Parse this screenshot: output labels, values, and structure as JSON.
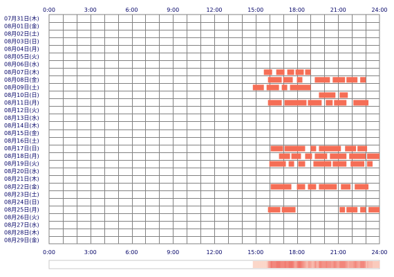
{
  "chart_data": {
    "type": "heatmap",
    "title": "",
    "xlabel": "",
    "ylabel": "",
    "x_range_hours": [
      0,
      24
    ],
    "x_ticks": [
      "0:00",
      "3:00",
      "6:00",
      "9:00",
      "12:00",
      "15:00",
      "18:00",
      "21:00",
      "24:00"
    ],
    "grid": true,
    "colors": {
      "bar": "#f56e56",
      "bar_light": "#f9a87a",
      "grid": "#808080",
      "label": "#000066",
      "density_base": "#fdeee6"
    },
    "rows": [
      {
        "date": "07月31日(木)",
        "intervals": []
      },
      {
        "date": "08月01日(金)",
        "intervals": []
      },
      {
        "date": "08月02日(土)",
        "intervals": []
      },
      {
        "date": "08月03日(日)",
        "intervals": []
      },
      {
        "date": "08月04日(月)",
        "intervals": []
      },
      {
        "date": "08月05日(火)",
        "intervals": []
      },
      {
        "date": "08月06日(水)",
        "intervals": []
      },
      {
        "date": "08月07日(木)",
        "intervals": [
          [
            15.6,
            16.2
          ],
          [
            16.5,
            17.1
          ],
          [
            17.3,
            17.8
          ],
          [
            17.9,
            18.5
          ],
          [
            18.6,
            19.0
          ]
        ]
      },
      {
        "date": "08月08日(金)",
        "intervals": [
          [
            15.9,
            16.9
          ],
          [
            17.0,
            17.7
          ],
          [
            18.0,
            18.4
          ],
          [
            19.3,
            20.4
          ],
          [
            20.6,
            21.5
          ],
          [
            21.6,
            22.4
          ],
          [
            22.6,
            23.0
          ]
        ]
      },
      {
        "date": "08月09日(土)",
        "intervals": [
          [
            14.8,
            15.6
          ],
          [
            15.8,
            16.7
          ],
          [
            16.9,
            17.3
          ],
          [
            17.5,
            19.0
          ]
        ]
      },
      {
        "date": "08月10日(日)",
        "intervals": [
          [
            19.6,
            20.8
          ],
          [
            21.1,
            21.7
          ]
        ]
      },
      {
        "date": "08月11日(月)",
        "intervals": [
          [
            15.9,
            16.9
          ],
          [
            17.1,
            18.7
          ],
          [
            18.8,
            19.8
          ],
          [
            20.1,
            20.6
          ],
          [
            20.7,
            21.6
          ],
          [
            22.1,
            23.2
          ]
        ]
      },
      {
        "date": "08月12日(火)",
        "intervals": []
      },
      {
        "date": "08月13日(水)",
        "intervals": []
      },
      {
        "date": "08月14日(木)",
        "intervals": []
      },
      {
        "date": "08月15日(金)",
        "intervals": []
      },
      {
        "date": "08月16日(土)",
        "intervals": []
      },
      {
        "date": "08月17日(日)",
        "intervals": [
          [
            16.1,
            17.0
          ],
          [
            17.1,
            18.6
          ],
          [
            19.0,
            19.4
          ],
          [
            19.6,
            21.2
          ],
          [
            21.5,
            22.3
          ],
          [
            22.4,
            23.1
          ]
        ]
      },
      {
        "date": "08月18日(月)",
        "intervals": [
          [
            16.7,
            17.5
          ],
          [
            17.6,
            18.3
          ],
          [
            18.6,
            19.1
          ],
          [
            19.3,
            20.2
          ],
          [
            20.4,
            21.6
          ],
          [
            21.8,
            23.0
          ],
          [
            23.1,
            24.0
          ]
        ]
      },
      {
        "date": "08月19日(火)",
        "intervals": [
          [
            16.0,
            17.2
          ],
          [
            17.4,
            17.8
          ],
          [
            18.1,
            18.6
          ],
          [
            19.2,
            20.5
          ],
          [
            20.6,
            21.6
          ],
          [
            21.9,
            22.9
          ],
          [
            23.1,
            23.5
          ]
        ]
      },
      {
        "date": "08月20日(水)",
        "intervals": []
      },
      {
        "date": "08月21日(木)",
        "intervals": []
      },
      {
        "date": "08月22日(金)",
        "intervals": [
          [
            16.1,
            17.6
          ],
          [
            18.0,
            18.6
          ],
          [
            18.8,
            19.4
          ],
          [
            19.6,
            20.9
          ],
          [
            21.2,
            21.9
          ],
          [
            22.2,
            23.2
          ]
        ]
      },
      {
        "date": "08月23日(土)",
        "intervals": []
      },
      {
        "date": "08月24日(日)",
        "intervals": []
      },
      {
        "date": "08月25日(月)",
        "intervals": [
          [
            15.9,
            16.8
          ],
          [
            16.9,
            17.9
          ],
          [
            21.1,
            21.5
          ],
          [
            21.6,
            22.4
          ],
          [
            22.6,
            23.0
          ],
          [
            23.2,
            24.0
          ]
        ]
      },
      {
        "date": "08月26日(火)",
        "intervals": []
      },
      {
        "date": "08月27日(水)",
        "intervals": []
      },
      {
        "date": "08月28日(木)",
        "intervals": []
      },
      {
        "date": "08月29日(金)",
        "intervals": []
      }
    ]
  }
}
